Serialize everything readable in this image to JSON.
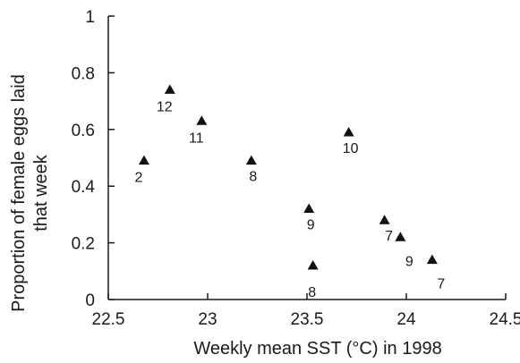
{
  "chart_data": {
    "type": "scatter",
    "title": "",
    "xlabel": "Weekly mean SST (°C) in 1998",
    "ylabel_lines": [
      "Proportion of female eggs laid",
      "that week"
    ],
    "xlim": [
      22.5,
      24.5
    ],
    "ylim": [
      0,
      1
    ],
    "x_ticks": [
      "22.5",
      "23",
      "23.5",
      "24",
      "24.5"
    ],
    "y_ticks": [
      "0",
      "0.2",
      "0.4",
      "0.6",
      "0.8",
      "1"
    ],
    "grid": false,
    "legend": "none",
    "marker": "triangle",
    "marker_color": "#111111",
    "points": [
      {
        "x": 22.68,
        "y": 0.49,
        "label": "2",
        "label_pos": "below-left"
      },
      {
        "x": 22.81,
        "y": 0.74,
        "label": "12",
        "label_pos": "below-left"
      },
      {
        "x": 22.97,
        "y": 0.63,
        "label": "11",
        "label_pos": "below-left"
      },
      {
        "x": 23.22,
        "y": 0.49,
        "label": "8",
        "label_pos": "below"
      },
      {
        "x": 23.71,
        "y": 0.59,
        "label": "10",
        "label_pos": "below"
      },
      {
        "x": 23.51,
        "y": 0.32,
        "label": "9",
        "label_pos": "below"
      },
      {
        "x": 23.53,
        "y": 0.12,
        "label": "8",
        "label_pos": "far-below"
      },
      {
        "x": 23.89,
        "y": 0.28,
        "label": "7",
        "label_pos": "below-right"
      },
      {
        "x": 23.97,
        "y": 0.22,
        "label": "9",
        "label_pos": "far-below-right"
      },
      {
        "x": 24.13,
        "y": 0.14,
        "label": "7",
        "label_pos": "far-below-right"
      }
    ]
  }
}
